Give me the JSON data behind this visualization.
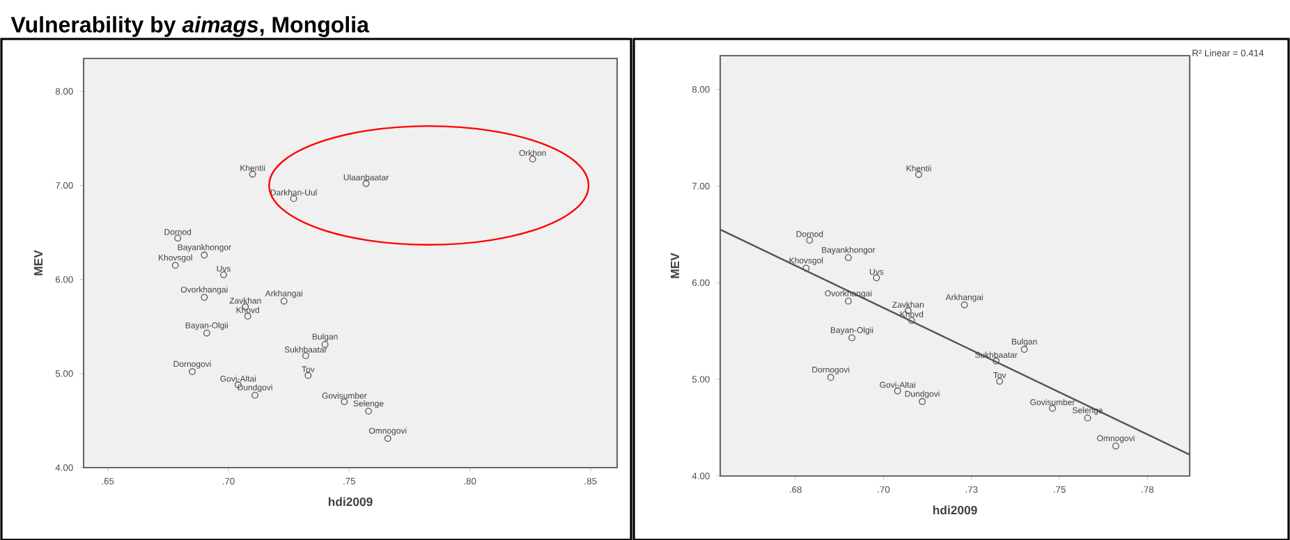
{
  "chart_data": [
    {
      "type": "scatter",
      "title": "Vulnerability by *aimags*, Mongolia",
      "xlabel": "hdi2009",
      "ylabel": "MEV",
      "color": "#5a5a5a",
      "marker": "circle",
      "x": [
        0.71,
        0.727,
        0.757,
        0.826,
        0.679,
        0.69,
        0.678,
        0.698,
        0.69,
        0.707,
        0.708,
        0.723,
        0.691,
        0.74,
        0.732,
        0.685,
        0.704,
        0.711,
        0.733,
        0.748,
        0.758,
        0.766
      ],
      "values": [
        7.12,
        6.86,
        7.02,
        7.28,
        6.44,
        6.26,
        6.15,
        6.05,
        5.81,
        5.71,
        5.61,
        5.77,
        5.43,
        5.31,
        5.19,
        5.02,
        4.88,
        4.77,
        4.98,
        4.7,
        4.6,
        4.31
      ],
      "xlim": [
        0.64,
        0.861
      ],
      "ylim": [
        4,
        8.35
      ],
      "xticks": [
        {
          "value": 0.65,
          "label": ".65"
        },
        {
          "value": 0.7,
          "label": ".70"
        },
        {
          "value": 0.75,
          "label": ".75"
        },
        {
          "value": 0.8,
          "label": ".80"
        },
        {
          "value": 0.85,
          "label": ".85"
        }
      ],
      "yticks": [
        {
          "value": 4,
          "label": "4.00"
        },
        {
          "value": 5,
          "label": "5.00"
        },
        {
          "value": 6,
          "label": "6.00"
        },
        {
          "value": 7,
          "label": "7.00"
        },
        {
          "value": 8,
          "label": "8.00"
        }
      ],
      "annotations": [
        {
          "text": "Khentii",
          "x": 0.71,
          "y": 7.12
        },
        {
          "text": "Darkhan-Uul",
          "x": 0.727,
          "y": 6.86
        },
        {
          "text": "Ulaanbaatar",
          "x": 0.757,
          "y": 7.02
        },
        {
          "text": "Orkhon",
          "x": 0.826,
          "y": 7.28
        },
        {
          "text": "Dornod",
          "x": 0.679,
          "y": 6.44
        },
        {
          "text": "Bayankhongor",
          "x": 0.69,
          "y": 6.26
        },
        {
          "text": "Khovsgol",
          "x": 0.678,
          "y": 6.15
        },
        {
          "text": "Uvs",
          "x": 0.698,
          "y": 6.05
        },
        {
          "text": "Ovorkhangai",
          "x": 0.69,
          "y": 5.81
        },
        {
          "text": "Zavkhan",
          "x": 0.707,
          "y": 5.71
        },
        {
          "text": "Khovd",
          "x": 0.708,
          "y": 5.61
        },
        {
          "text": "Arkhangai",
          "x": 0.723,
          "y": 5.77
        },
        {
          "text": "Bayan-Olgii",
          "x": 0.691,
          "y": 5.43
        },
        {
          "text": "Bulgan",
          "x": 0.74,
          "y": 5.31
        },
        {
          "text": "Sukhbaatar",
          "x": 0.732,
          "y": 5.19
        },
        {
          "text": "Dornogovi",
          "x": 0.685,
          "y": 5.02
        },
        {
          "text": "Govi-Altai",
          "x": 0.704,
          "y": 4.88
        },
        {
          "text": "Dundgovi",
          "x": 0.711,
          "y": 4.77
        },
        {
          "text": "Tov",
          "x": 0.733,
          "y": 4.98
        },
        {
          "text": "Govisumber",
          "x": 0.748,
          "y": 4.7
        },
        {
          "text": "Selenge",
          "x": 0.758,
          "y": 4.6
        },
        {
          "text": "Omnogovi",
          "x": 0.766,
          "y": 4.31
        }
      ]
    },
    {
      "type": "scatter",
      "xlabel": "hdi2009",
      "ylabel": "MEV",
      "marker": "circle",
      "series": [
        {
          "type": "scatter",
          "color": "#5a5a5a",
          "x": [
            0.71,
            0.679,
            0.69,
            0.678,
            0.698,
            0.69,
            0.707,
            0.708,
            0.723,
            0.691,
            0.74,
            0.732,
            0.685,
            0.704,
            0.711,
            0.733,
            0.748,
            0.758,
            0.766
          ],
          "values": [
            7.12,
            6.44,
            6.26,
            6.15,
            6.05,
            5.81,
            5.71,
            5.61,
            5.77,
            5.43,
            5.31,
            5.19,
            5.02,
            4.88,
            4.77,
            4.98,
            4.7,
            4.6,
            4.31
          ]
        },
        {
          "type": "line",
          "color": "#555555",
          "marker": "none",
          "x": [
            0.6536,
            0.787
          ],
          "values": [
            6.55,
            4.22
          ]
        }
      ],
      "xlim": [
        0.6536,
        0.787
      ],
      "ylim": [
        4,
        8.35
      ],
      "xticks": [
        {
          "value": 0.675,
          "label": ".68"
        },
        {
          "value": 0.7,
          "label": ".70"
        },
        {
          "value": 0.725,
          "label": ".73"
        },
        {
          "value": 0.75,
          "label": ".75"
        },
        {
          "value": 0.775,
          "label": ".78"
        }
      ],
      "yticks": [
        {
          "value": 4,
          "label": "4.00"
        },
        {
          "value": 5,
          "label": "5.00"
        },
        {
          "value": 6,
          "label": "6.00"
        },
        {
          "value": 7,
          "label": "7.00"
        },
        {
          "value": 8,
          "label": "8.00"
        }
      ],
      "annotations": [
        "R² Linear = 0.414",
        {
          "text": "Khentii",
          "x": 0.71,
          "y": 7.12
        },
        {
          "text": "Dornod",
          "x": 0.679,
          "y": 6.44
        },
        {
          "text": "Bayankhongor",
          "x": 0.69,
          "y": 6.26
        },
        {
          "text": "Khovsgol",
          "x": 0.678,
          "y": 6.15
        },
        {
          "text": "Uvs",
          "x": 0.698,
          "y": 6.05
        },
        {
          "text": "Ovorkhangai",
          "x": 0.69,
          "y": 5.81
        },
        {
          "text": "Zavkhan",
          "x": 0.707,
          "y": 5.71
        },
        {
          "text": "Khovd",
          "x": 0.708,
          "y": 5.61
        },
        {
          "text": "Arkhangai",
          "x": 0.723,
          "y": 5.77
        },
        {
          "text": "Bayan-Olgii",
          "x": 0.691,
          "y": 5.43
        },
        {
          "text": "Bulgan",
          "x": 0.74,
          "y": 5.31
        },
        {
          "text": "Sukhbaatar",
          "x": 0.732,
          "y": 5.19
        },
        {
          "text": "Dornogovi",
          "x": 0.685,
          "y": 5.02
        },
        {
          "text": "Govi-Altai",
          "x": 0.704,
          "y": 4.88
        },
        {
          "text": "Dundgovi",
          "x": 0.711,
          "y": 4.77
        },
        {
          "text": "Tov",
          "x": 0.733,
          "y": 4.98
        },
        {
          "text": "Govisumber",
          "x": 0.748,
          "y": 4.7
        },
        {
          "text": "Selenge",
          "x": 0.758,
          "y": 4.6
        },
        {
          "text": "Omnogovi",
          "x": 0.766,
          "y": 4.31
        }
      ]
    }
  ]
}
